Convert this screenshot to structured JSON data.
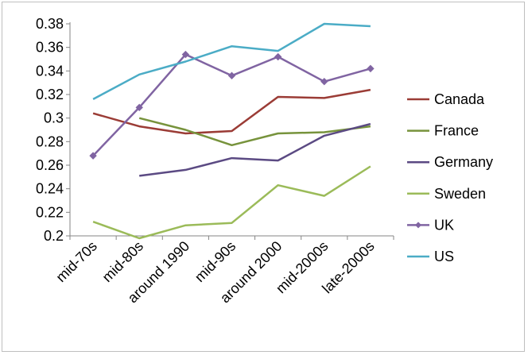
{
  "chart_data": {
    "type": "line",
    "title": "",
    "xlabel": "",
    "ylabel": "",
    "ylim": [
      0.2,
      0.38
    ],
    "y_ticks": [
      "0.2",
      "0.22",
      "0.24",
      "0.26",
      "0.28",
      "0.3",
      "0.32",
      "0.34",
      "0.36",
      "0.38"
    ],
    "categories": [
      "mid-70s",
      "mid-80s",
      "around 1990",
      "mid-90s",
      "around 2000",
      "mid-2000s",
      "late-2000s"
    ],
    "grid": false,
    "legend_position": "right",
    "series": [
      {
        "name": "Canada",
        "color": "#9b3c36",
        "marker": "none",
        "values": [
          0.304,
          0.293,
          0.287,
          0.289,
          0.318,
          0.317,
          0.324
        ]
      },
      {
        "name": "France",
        "color": "#77933c",
        "marker": "none",
        "values": [
          null,
          0.3,
          0.29,
          0.277,
          0.287,
          0.288,
          0.293
        ]
      },
      {
        "name": "Germany",
        "color": "#5b4a83",
        "marker": "none",
        "values": [
          null,
          0.251,
          0.256,
          0.266,
          0.264,
          0.285,
          0.295
        ]
      },
      {
        "name": "Sweden",
        "color": "#9bbb59",
        "marker": "none",
        "values": [
          0.212,
          0.198,
          0.209,
          0.211,
          0.243,
          0.234,
          0.259
        ]
      },
      {
        "name": "UK",
        "color": "#8064a2",
        "marker": "diamond",
        "values": [
          0.268,
          0.309,
          0.354,
          0.336,
          0.352,
          0.331,
          0.342
        ]
      },
      {
        "name": "US",
        "color": "#4bacc6",
        "marker": "none",
        "values": [
          0.316,
          0.337,
          0.348,
          0.361,
          0.357,
          0.38,
          0.378
        ]
      }
    ]
  }
}
